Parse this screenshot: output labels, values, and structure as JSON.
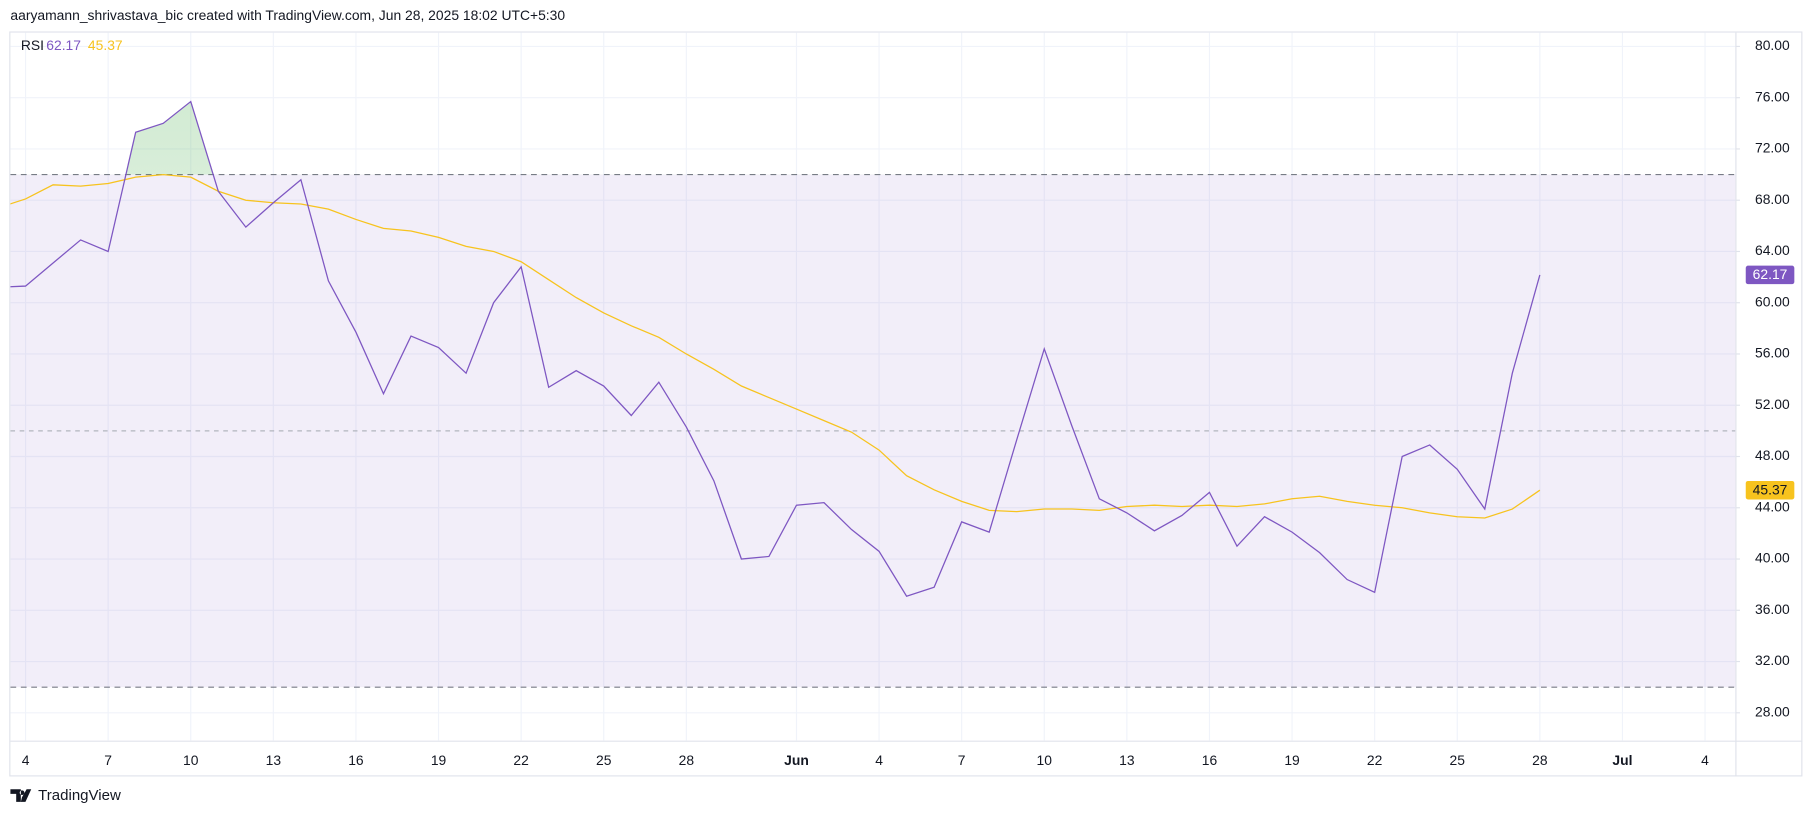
{
  "header": "aaryamann_shrivastava_bic created with TradingView.com, Jun 28, 2025 18:02 UTC+5:30",
  "footer": "TradingView",
  "chart_data": {
    "type": "line",
    "indicator": "RSI",
    "x": [
      3,
      4,
      5,
      6,
      7,
      8,
      9,
      10,
      11,
      12,
      13,
      14,
      15,
      16,
      17,
      18,
      19,
      20,
      21,
      22,
      23,
      24,
      25,
      26,
      27,
      28,
      29,
      30,
      31,
      32,
      33,
      34,
      35,
      36,
      37,
      38,
      39,
      40,
      41,
      42,
      43,
      44,
      45,
      46,
      47,
      48,
      49,
      50,
      51,
      52,
      53,
      54,
      55,
      56,
      57,
      58,
      59
    ],
    "series": [
      {
        "color": "#7e57c2",
        "values": [
          61.2,
          61.3,
          63.1,
          64.9,
          64.0,
          73.3,
          74.0,
          75.7,
          68.7,
          65.9,
          67.8,
          69.6,
          61.7,
          57.7,
          52.9,
          57.4,
          56.5,
          54.5,
          60.0,
          62.8,
          53.4,
          54.7,
          53.5,
          51.2,
          53.8,
          50.3,
          46.1,
          40.0,
          40.2,
          44.2,
          44.4,
          42.3,
          40.6,
          37.1,
          37.8,
          42.9,
          42.1,
          49.3,
          56.4,
          50.4,
          44.7,
          43.6,
          42.2,
          43.4,
          45.2,
          41.0,
          43.3,
          42.1,
          40.5,
          38.4,
          37.4,
          48.0,
          48.9,
          47.0,
          43.9,
          54.5,
          62.17
        ]
      },
      {
        "color": "#f7c31e",
        "values": [
          67.4,
          68.1,
          69.2,
          69.1,
          69.3,
          69.8,
          70.0,
          69.8,
          68.7,
          68.0,
          67.8,
          67.7,
          67.3,
          66.5,
          65.8,
          65.6,
          65.1,
          64.4,
          64.0,
          63.2,
          61.8,
          60.4,
          59.2,
          58.2,
          57.3,
          56.0,
          54.8,
          53.5,
          52.6,
          51.7,
          50.8,
          49.9,
          48.5,
          46.5,
          45.4,
          44.5,
          43.8,
          43.7,
          43.9,
          43.9,
          43.8,
          44.1,
          44.2,
          44.1,
          44.2,
          44.1,
          44.3,
          44.7,
          44.9,
          44.5,
          44.2,
          44.0,
          43.6,
          43.3,
          43.2,
          43.9,
          45.37
        ]
      }
    ],
    "bands": [
      70,
      50,
      30
    ],
    "band_color": "#7e57c2",
    "overbought_fill": "#4caf50",
    "xlim": [
      3.45,
      66.1
    ],
    "xticks": [
      4,
      7,
      10,
      13,
      16,
      19,
      22,
      25,
      28,
      {
        "value": 32,
        "label": "Jun"
      },
      {
        "value": 35,
        "label": "4"
      },
      {
        "value": 38,
        "label": "7"
      },
      {
        "value": 41,
        "label": "10"
      },
      {
        "value": 44,
        "label": "13"
      },
      {
        "value": 47,
        "label": "16"
      },
      {
        "value": 50,
        "label": "19"
      },
      {
        "value": 53,
        "label": "22"
      },
      {
        "value": 56,
        "label": "25"
      },
      {
        "value": 59,
        "label": "28"
      },
      {
        "value": 62,
        "label": "Jul"
      },
      {
        "value": 65,
        "label": "4"
      }
    ],
    "ylim": [
      25.83,
      81.08
    ],
    "yticks": [
      {
        "value": 28,
        "label": "28.00"
      },
      {
        "value": 32,
        "label": "32.00"
      },
      {
        "value": 36,
        "label": "36.00"
      },
      {
        "value": 40,
        "label": "40.00"
      },
      {
        "value": 44,
        "label": "44.00"
      },
      {
        "value": 48,
        "label": "48.00"
      },
      {
        "value": 52,
        "label": "52.00"
      },
      {
        "value": 56,
        "label": "56.00"
      },
      {
        "value": 60,
        "label": "60.00"
      },
      {
        "value": 64,
        "label": "64.00"
      },
      {
        "value": 68,
        "label": "68.00"
      },
      {
        "value": 72,
        "label": "72.00"
      },
      {
        "value": 76,
        "label": "76.00"
      },
      {
        "value": 80,
        "label": "80.00"
      }
    ],
    "grid": true
  }
}
